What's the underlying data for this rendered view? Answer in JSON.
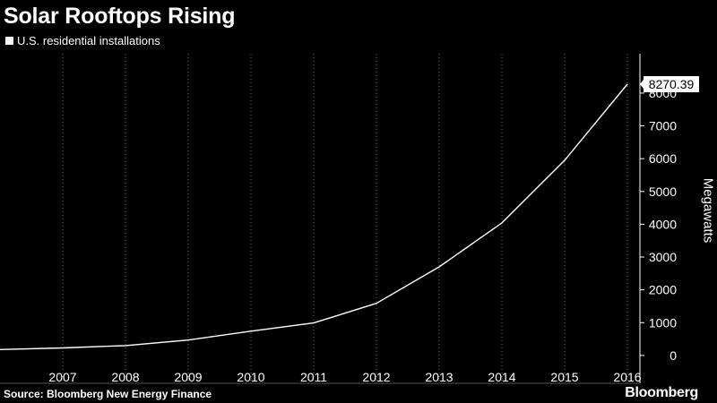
{
  "header": {
    "title": "Solar Rooftops Rising"
  },
  "footer": {
    "source": "Source: Bloomberg New Energy Finance",
    "brand": "Bloomberg"
  },
  "chart_data": {
    "type": "line",
    "title": "Solar Rooftops Rising",
    "xlabel": "",
    "ylabel": "Megawatts",
    "x": [
      2006,
      2007,
      2008,
      2009,
      2010,
      2011,
      2012,
      2013,
      2014,
      2015,
      2016
    ],
    "x_tick_labels": [
      "2007",
      "2008",
      "2009",
      "2010",
      "2011",
      "2012",
      "2013",
      "2014",
      "2015",
      "2016"
    ],
    "y_ticks": [
      0,
      1000,
      2000,
      3000,
      4000,
      5000,
      6000,
      7000,
      8000
    ],
    "y_tick_labels": [
      "0",
      "1000",
      "2000",
      "3000",
      "4000",
      "5000",
      "6000",
      "7000",
      "8000"
    ],
    "xlim": [
      2006,
      2016.2
    ],
    "ylim": [
      -850,
      9200
    ],
    "series": [
      {
        "name": "U.S. residential installations",
        "color": "#ffffff",
        "values": [
          180,
          230,
          300,
          470,
          740,
          990,
          1590,
          2700,
          4040,
          5950,
          8270.39
        ]
      }
    ],
    "last_value_label": "8270.39",
    "grid": "vertical dotted at year ticks",
    "legend_position": "top-left",
    "y_axis_side": "right"
  }
}
